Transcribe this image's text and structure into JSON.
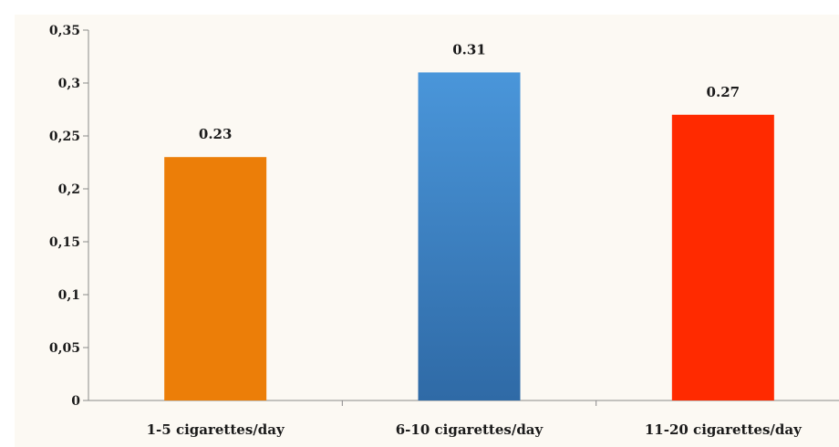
{
  "chart_data": {
    "type": "bar",
    "categories": [
      "1-5 cigarettes/day",
      "6-10 cigarettes/day",
      "11-20 cigarettes/day"
    ],
    "values": [
      0.23,
      0.31,
      0.27
    ],
    "data_labels": [
      "0.23",
      "0.31",
      "0.27"
    ],
    "y_tick_labels": [
      "0",
      "0,05",
      "0,1",
      "0,15",
      "0,2",
      "0,25",
      "0,3",
      "0,35"
    ],
    "ylim": [
      0,
      0.35
    ],
    "bar_colors": [
      {
        "top": "#ec7e08",
        "bottom": "#ec7e08"
      },
      {
        "top": "#4a96da",
        "bottom": "#2f6aa6"
      },
      {
        "top": "#ff2a00",
        "bottom": "#ff2a00"
      }
    ],
    "grid": false,
    "legend": "none"
  }
}
